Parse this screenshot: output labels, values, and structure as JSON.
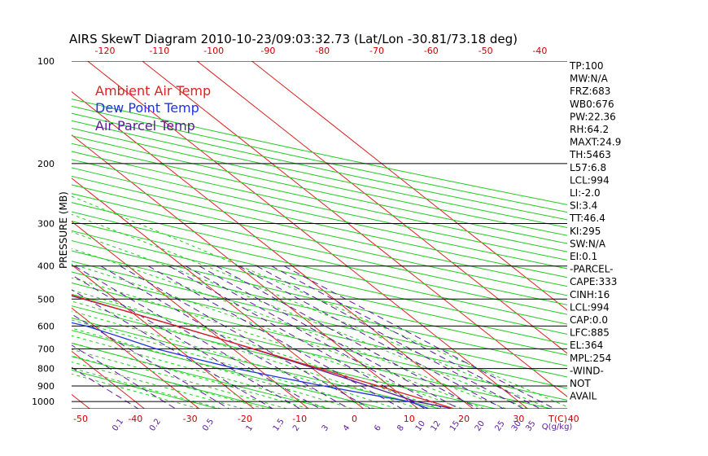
{
  "title": "AIRS SkewT Diagram 2010-10-23/09:03:32.73 (Lat/Lon -30.81/73.18 deg)",
  "ylabel": "PRESSURE (MB)",
  "legend": [
    {
      "label": "Ambient Air Temp",
      "color": "#dd2222"
    },
    {
      "label": "Dew Point Temp",
      "color": "#2233dd"
    },
    {
      "label": "Air Parcel Temp",
      "color": "#5a1a9a"
    }
  ],
  "colors": {
    "isotherm": "#dd2222",
    "dry_adiabat": "#22cc22",
    "moist_adiabat": "#22cc22",
    "mixing_ratio": "#5a1a9a",
    "isobar": "#000000",
    "temperature": "#dd2222",
    "dewpoint": "#2233dd",
    "parcel": "#5a1a9a",
    "cape_hatch": "#2a2a7a"
  },
  "chart_data": {
    "type": "line",
    "pressure_ticks": [
      100,
      200,
      300,
      400,
      500,
      600,
      700,
      800,
      900,
      1000
    ],
    "top_temp_ticks": [
      "-120",
      "-110",
      "-100",
      "-90",
      "-80",
      "-70",
      "-60",
      "-50",
      "-40"
    ],
    "bottom_temp_ticks": [
      "-50",
      "-40",
      "-30",
      "-20",
      "-10",
      "0",
      "10",
      "20",
      "30",
      "40"
    ],
    "bottom_temp_unit": "T(C)",
    "mixing_ratio_labels": [
      "0.1",
      "0.2",
      "0.5",
      "1",
      "1.5",
      "2",
      "3",
      "4",
      "6",
      "8",
      "10",
      "12",
      "15",
      "20",
      "25",
      "30",
      "35"
    ],
    "mixing_ratio_unit": "Q(g/kg)",
    "ylim": [
      100,
      1050
    ],
    "series": [
      {
        "name": "Ambient Air Temp",
        "pressure": [
          1050,
          1000,
          950,
          900,
          850,
          800,
          750,
          700,
          650,
          600,
          550,
          500,
          450,
          400,
          350,
          300,
          280,
          260,
          240,
          220,
          200,
          180,
          160,
          140,
          120,
          100
        ],
        "values": [
          16.5,
          14.0,
          11.0,
          8.0,
          4.6,
          1.2,
          -2.4,
          -6.2,
          -10.4,
          -15.0,
          -20.0,
          -25.5,
          -31.8,
          -39.0,
          -47.2,
          -56.5,
          -60.6,
          -60.6,
          -60.6,
          -60.2,
          -58.8,
          -56.0,
          -53.2,
          -51.0,
          -50.8,
          -51.5
        ]
      },
      {
        "name": "Dew Point Temp",
        "pressure": [
          1050,
          1000,
          950,
          900,
          850,
          800,
          750,
          700,
          650,
          600,
          550,
          500,
          450,
          400,
          350,
          300,
          280,
          260,
          240,
          220,
          200,
          180,
          160,
          140,
          120,
          100
        ],
        "values": [
          12.0,
          10.0,
          4.0,
          -2.0,
          -8.0,
          -14.0,
          -19.0,
          -24.0,
          -27.5,
          -31.5,
          -39.0,
          -49.0,
          -61.0,
          -73.0,
          -81.0,
          -89.0,
          -90.0,
          -89.0,
          -88.0,
          -87.5,
          -87.0,
          -86.0,
          -85.0,
          -84.0,
          -85.0,
          -87.0
        ]
      },
      {
        "name": "Air Parcel Temp",
        "pressure": [
          1050,
          1000,
          950,
          900,
          850,
          800,
          750,
          700,
          650,
          600,
          550,
          500,
          450,
          400,
          350,
          300,
          250,
          200,
          150,
          100
        ],
        "values": [
          16.5,
          11.2,
          8.7,
          6.2,
          3.5,
          0.5,
          -2.8,
          -6.4,
          -10.4,
          -14.9,
          -20.0,
          -25.8,
          -32.6,
          -40.5,
          -49.9,
          -60.8,
          -73.0,
          -86.0,
          -101.0,
          -119.0
        ]
      }
    ]
  },
  "stats": [
    "TP:100",
    "MW:N/A",
    "FRZ:683",
    "WB0:676",
    "PW:22.36",
    "RH:64.2",
    "MAXT:24.9",
    "TH:5463",
    "L57:6.8",
    "LCL:994",
    "LI:-2.0",
    "SI:3.4",
    "TT:46.4",
    "KI:295",
    "SW:N/A",
    "EI:0.1",
    "-PARCEL-",
    "CAPE:333",
    "CINH:16",
    "LCL:994",
    "CAP:0.0",
    "LFC:885",
    "EL:364",
    "MPL:254",
    "-WIND-",
    "NOT",
    "AVAIL"
  ]
}
